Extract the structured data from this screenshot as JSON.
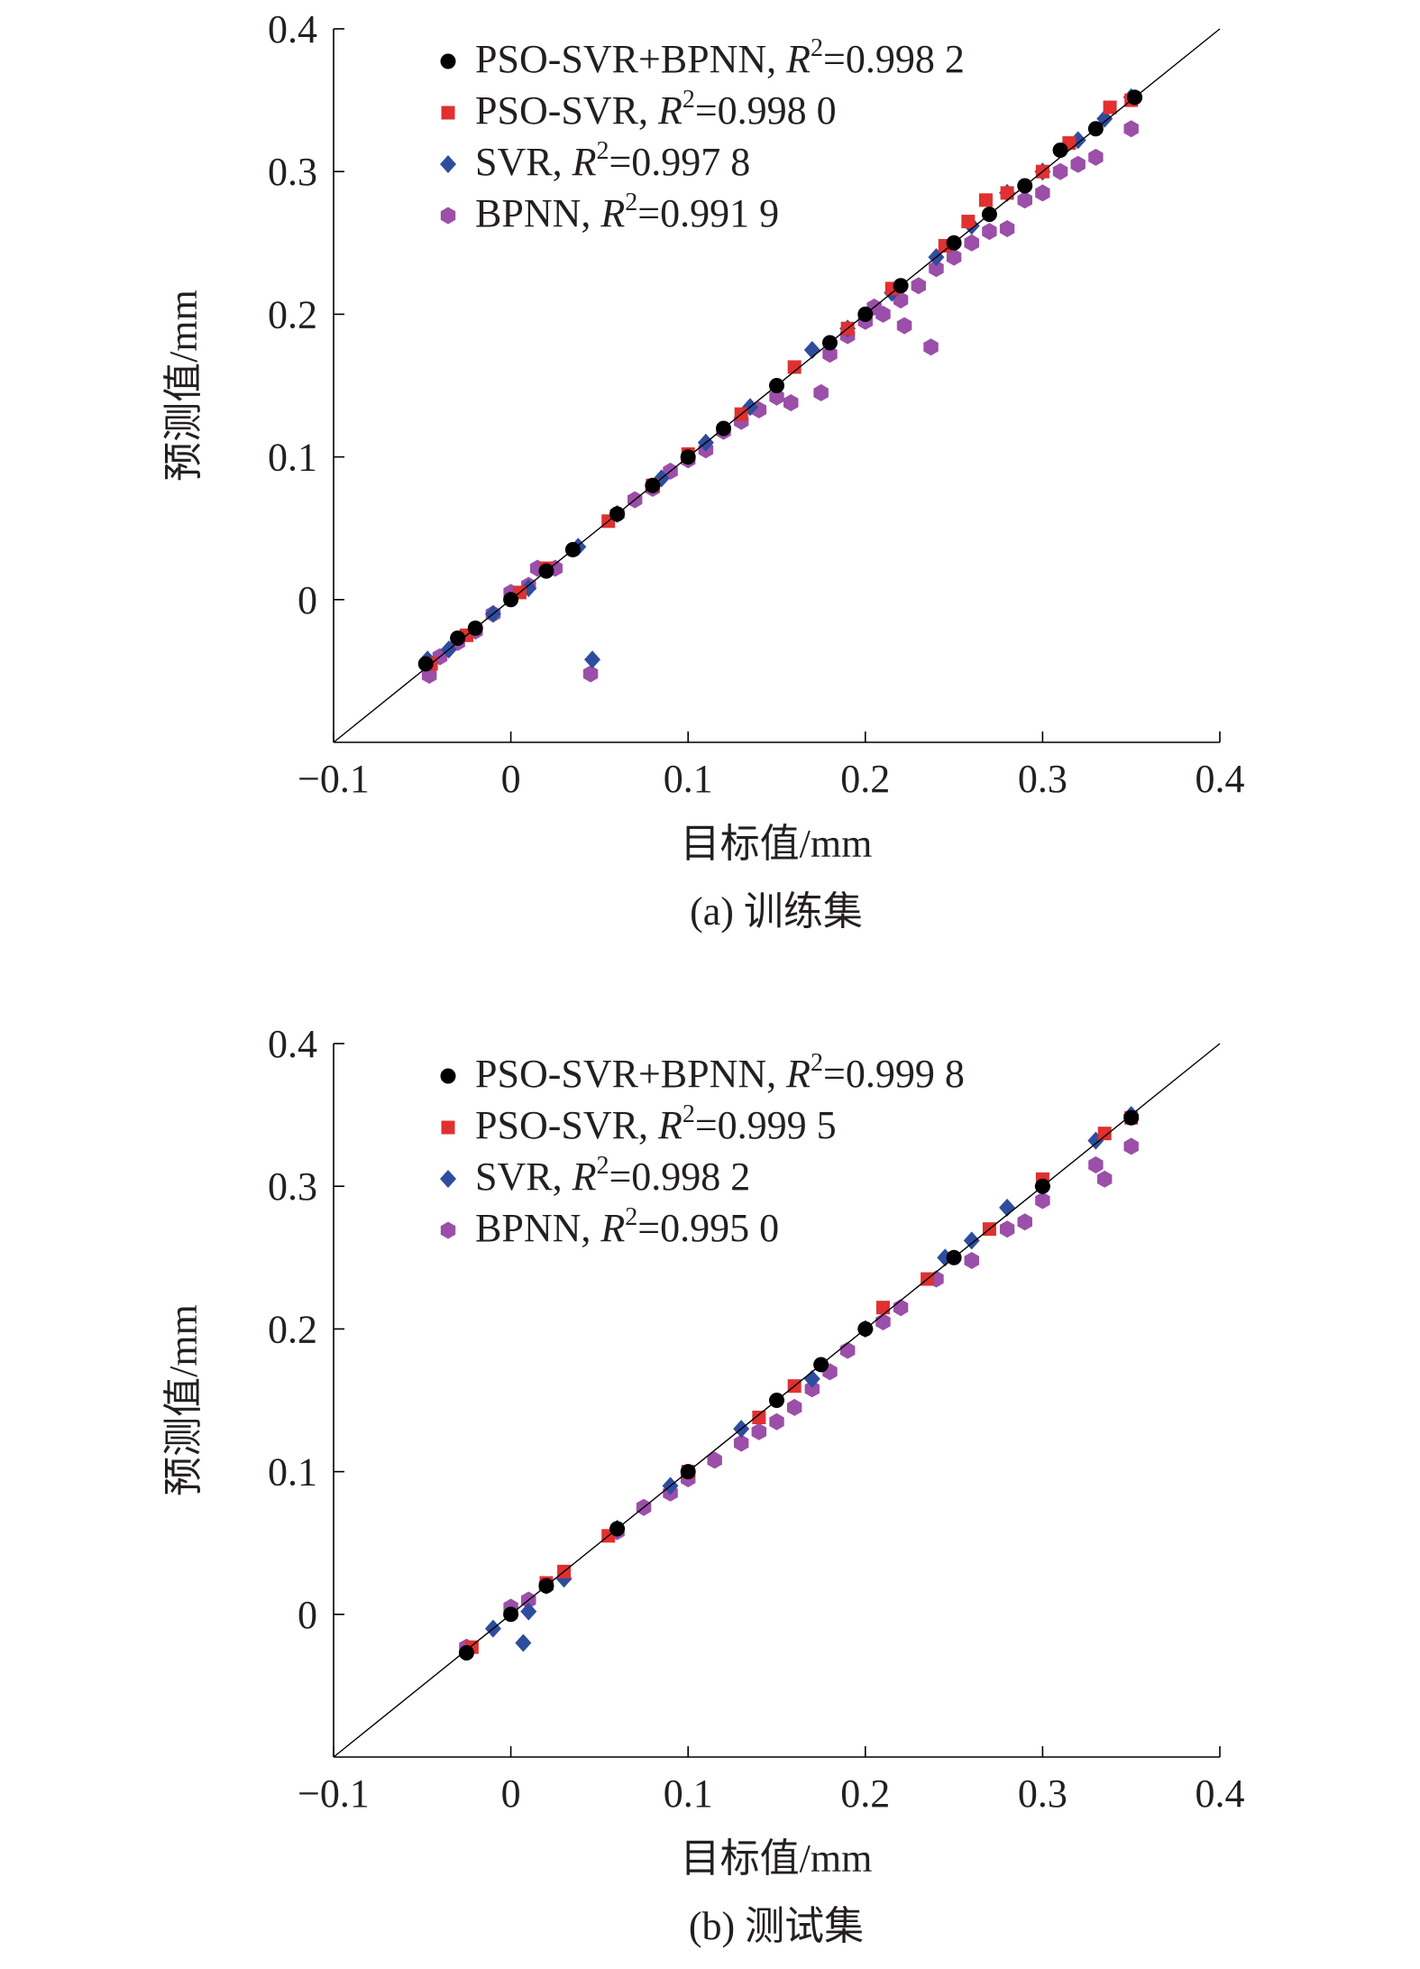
{
  "chart_data": [
    {
      "type": "scatter",
      "id": "train",
      "caption": "(a) 训练集",
      "xlabel": "目标值/mm",
      "ylabel": "预测值/mm",
      "xlim": [
        -0.1,
        0.4
      ],
      "ylim": [
        -0.1,
        0.4
      ],
      "xticks": [
        "−0.1",
        "0",
        "0.1",
        "0.2",
        "0.3",
        "0.4"
      ],
      "yticks": [
        "0",
        "0.1",
        "0.2",
        "0.3",
        "0.4"
      ],
      "legend_position": "top-left",
      "reference_line": "y=x",
      "series": [
        {
          "name": "PSO-SVR+BPNN",
          "r2": "0.998 2",
          "color": "#000000",
          "marker": "circle",
          "points": [
            [
              -0.048,
              -0.045
            ],
            [
              -0.03,
              -0.027
            ],
            [
              -0.02,
              -0.02
            ],
            [
              0.0,
              0.0
            ],
            [
              0.02,
              0.02
            ],
            [
              0.035,
              0.035
            ],
            [
              0.06,
              0.06
            ],
            [
              0.08,
              0.08
            ],
            [
              0.1,
              0.1
            ],
            [
              0.12,
              0.12
            ],
            [
              0.15,
              0.15
            ],
            [
              0.18,
              0.18
            ],
            [
              0.2,
              0.2
            ],
            [
              0.22,
              0.22
            ],
            [
              0.25,
              0.25
            ],
            [
              0.27,
              0.27
            ],
            [
              0.29,
              0.29
            ],
            [
              0.31,
              0.315
            ],
            [
              0.33,
              0.33
            ],
            [
              0.352,
              0.352
            ]
          ]
        },
        {
          "name": "PSO-SVR",
          "r2": "0.998 0",
          "color": "#e03030",
          "marker": "square",
          "points": [
            [
              -0.045,
              -0.045
            ],
            [
              -0.025,
              -0.025
            ],
            [
              0.005,
              0.005
            ],
            [
              0.02,
              0.022
            ],
            [
              0.055,
              0.055
            ],
            [
              0.08,
              0.08
            ],
            [
              0.1,
              0.102
            ],
            [
              0.13,
              0.13
            ],
            [
              0.16,
              0.163
            ],
            [
              0.19,
              0.19
            ],
            [
              0.215,
              0.218
            ],
            [
              0.245,
              0.248
            ],
            [
              0.258,
              0.265
            ],
            [
              0.268,
              0.28
            ],
            [
              0.28,
              0.285
            ],
            [
              0.3,
              0.3
            ],
            [
              0.315,
              0.32
            ],
            [
              0.338,
              0.345
            ],
            [
              0.35,
              0.35
            ]
          ]
        },
        {
          "name": "SVR",
          "r2": "0.997 8",
          "color": "#2f4d9e",
          "marker": "diamond",
          "points": [
            [
              -0.047,
              -0.042
            ],
            [
              -0.035,
              -0.035
            ],
            [
              -0.01,
              -0.01
            ],
            [
              0.01,
              0.008
            ],
            [
              0.038,
              0.037
            ],
            [
              0.046,
              -0.042
            ],
            [
              0.06,
              0.06
            ],
            [
              0.085,
              0.085
            ],
            [
              0.11,
              0.11
            ],
            [
              0.135,
              0.135
            ],
            [
              0.17,
              0.175
            ],
            [
              0.19,
              0.19
            ],
            [
              0.215,
              0.215
            ],
            [
              0.24,
              0.24
            ],
            [
              0.26,
              0.262
            ],
            [
              0.28,
              0.285
            ],
            [
              0.3,
              0.3
            ],
            [
              0.32,
              0.322
            ],
            [
              0.335,
              0.337
            ],
            [
              0.35,
              0.352
            ]
          ]
        },
        {
          "name": "BPNN",
          "r2": "0.991 9",
          "color": "#9b4fa8",
          "marker": "hexagon",
          "points": [
            [
              -0.046,
              -0.053
            ],
            [
              -0.04,
              -0.04
            ],
            [
              -0.03,
              -0.03
            ],
            [
              -0.02,
              -0.022
            ],
            [
              -0.01,
              -0.01
            ],
            [
              0.0,
              0.005
            ],
            [
              0.01,
              0.01
            ],
            [
              0.015,
              0.022
            ],
            [
              0.025,
              0.022
            ],
            [
              0.045,
              -0.052
            ],
            [
              0.06,
              0.06
            ],
            [
              0.07,
              0.07
            ],
            [
              0.08,
              0.078
            ],
            [
              0.09,
              0.09
            ],
            [
              0.1,
              0.098
            ],
            [
              0.11,
              0.105
            ],
            [
              0.12,
              0.118
            ],
            [
              0.13,
              0.125
            ],
            [
              0.14,
              0.133
            ],
            [
              0.15,
              0.142
            ],
            [
              0.158,
              0.138
            ],
            [
              0.175,
              0.145
            ],
            [
              0.18,
              0.172
            ],
            [
              0.19,
              0.185
            ],
            [
              0.2,
              0.195
            ],
            [
              0.205,
              0.205
            ],
            [
              0.21,
              0.2
            ],
            [
              0.22,
              0.21
            ],
            [
              0.222,
              0.192
            ],
            [
              0.23,
              0.22
            ],
            [
              0.237,
              0.177
            ],
            [
              0.24,
              0.232
            ],
            [
              0.25,
              0.24
            ],
            [
              0.26,
              0.25
            ],
            [
              0.27,
              0.258
            ],
            [
              0.28,
              0.26
            ],
            [
              0.29,
              0.28
            ],
            [
              0.3,
              0.285
            ],
            [
              0.31,
              0.3
            ],
            [
              0.32,
              0.305
            ],
            [
              0.33,
              0.31
            ],
            [
              0.35,
              0.33
            ]
          ]
        }
      ]
    },
    {
      "type": "scatter",
      "id": "test",
      "caption": "(b) 测试集",
      "xlabel": "目标值/mm",
      "ylabel": "预测值/mm",
      "xlim": [
        -0.1,
        0.4
      ],
      "ylim": [
        -0.1,
        0.4
      ],
      "xticks": [
        "−0.1",
        "0",
        "0.1",
        "0.2",
        "0.3",
        "0.4"
      ],
      "yticks": [
        "0",
        "0.1",
        "0.2",
        "0.3",
        "0.4"
      ],
      "legend_position": "top-left",
      "reference_line": "y=x",
      "series": [
        {
          "name": "PSO-SVR+BPNN",
          "r2": "0.999 8",
          "color": "#000000",
          "marker": "circle",
          "points": [
            [
              -0.025,
              -0.027
            ],
            [
              0.0,
              0.0
            ],
            [
              0.02,
              0.02
            ],
            [
              0.06,
              0.06
            ],
            [
              0.1,
              0.1
            ],
            [
              0.15,
              0.15
            ],
            [
              0.175,
              0.175
            ],
            [
              0.2,
              0.2
            ],
            [
              0.25,
              0.25
            ],
            [
              0.3,
              0.3
            ],
            [
              0.35,
              0.348
            ]
          ]
        },
        {
          "name": "PSO-SVR",
          "r2": "0.999 5",
          "color": "#e03030",
          "marker": "square",
          "points": [
            [
              -0.022,
              -0.023
            ],
            [
              0.02,
              0.022
            ],
            [
              0.03,
              0.03
            ],
            [
              0.055,
              0.055
            ],
            [
              0.1,
              0.1
            ],
            [
              0.14,
              0.138
            ],
            [
              0.16,
              0.16
            ],
            [
              0.21,
              0.215
            ],
            [
              0.235,
              0.235
            ],
            [
              0.27,
              0.27
            ],
            [
              0.3,
              0.305
            ],
            [
              0.335,
              0.337
            ],
            [
              0.35,
              0.348
            ]
          ]
        },
        {
          "name": "SVR",
          "r2": "0.998 2",
          "color": "#2f4d9e",
          "marker": "diamond",
          "points": [
            [
              -0.01,
              -0.01
            ],
            [
              0.007,
              -0.02
            ],
            [
              0.01,
              0.002
            ],
            [
              0.03,
              0.025
            ],
            [
              0.06,
              0.06
            ],
            [
              0.09,
              0.09
            ],
            [
              0.13,
              0.13
            ],
            [
              0.17,
              0.165
            ],
            [
              0.2,
              0.2
            ],
            [
              0.245,
              0.25
            ],
            [
              0.26,
              0.262
            ],
            [
              0.28,
              0.285
            ],
            [
              0.3,
              0.3
            ],
            [
              0.33,
              0.332
            ],
            [
              0.35,
              0.35
            ]
          ]
        },
        {
          "name": "BPNN",
          "r2": "0.995 0",
          "color": "#9b4fa8",
          "marker": "hexagon",
          "points": [
            [
              -0.025,
              -0.023
            ],
            [
              0.0,
              0.005
            ],
            [
              0.01,
              0.01
            ],
            [
              0.02,
              0.02
            ],
            [
              0.06,
              0.058
            ],
            [
              0.075,
              0.075
            ],
            [
              0.09,
              0.085
            ],
            [
              0.1,
              0.095
            ],
            [
              0.115,
              0.108
            ],
            [
              0.13,
              0.12
            ],
            [
              0.14,
              0.128
            ],
            [
              0.15,
              0.135
            ],
            [
              0.16,
              0.145
            ],
            [
              0.17,
              0.158
            ],
            [
              0.18,
              0.17
            ],
            [
              0.19,
              0.185
            ],
            [
              0.21,
              0.205
            ],
            [
              0.22,
              0.215
            ],
            [
              0.24,
              0.235
            ],
            [
              0.26,
              0.248
            ],
            [
              0.28,
              0.27
            ],
            [
              0.29,
              0.275
            ],
            [
              0.3,
              0.29
            ],
            [
              0.33,
              0.315
            ],
            [
              0.335,
              0.305
            ],
            [
              0.35,
              0.328
            ]
          ]
        }
      ]
    }
  ]
}
